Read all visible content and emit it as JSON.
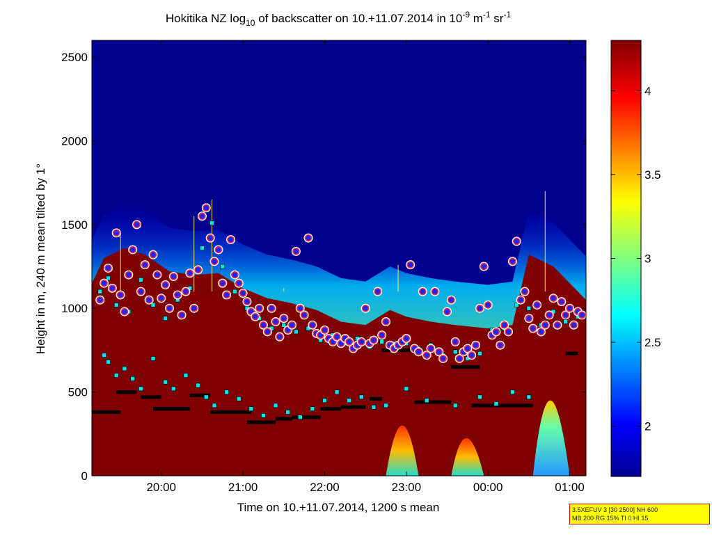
{
  "chart_data": {
    "type": "heatmap",
    "title": {
      "part1": "Hokitika NZ log",
      "sub1": "10",
      "part2": " of backscatter on 10.+11.07.2014 in 10",
      "sup1": "-9",
      "part3": " m",
      "sup2": "-1",
      "part4": " sr",
      "sup3": "-1"
    },
    "xlabel": "Time on 10.+11.07.2014, 1200 s mean",
    "ylabel": "Height in m, 240 m mean tilted by 1°",
    "x_ticks": [
      "20:00",
      "21:00",
      "22:00",
      "23:00",
      "00:00",
      "01:00"
    ],
    "y_ticks": [
      "0",
      "500",
      "1000",
      "1500",
      "2000",
      "2500"
    ],
    "ylim": [
      0,
      2600
    ],
    "colorbar": {
      "ticks": [
        "2",
        "2.5",
        "3",
        "3.5",
        "4"
      ],
      "range": [
        1.7,
        4.3
      ]
    },
    "colors": {
      "background_low": "#00008f",
      "high": "#7f0000",
      "cloud_marker_fill": "#2222ff",
      "cloud_marker_edge": "#ff2a2a",
      "cloud_marker_halo": "#ffffff",
      "layer_marker": "#00e5e5",
      "line_marker": "#000000"
    },
    "series": [
      {
        "points": [
          [
            19.25,
            1050
          ],
          [
            19.3,
            1150
          ],
          [
            19.35,
            1240
          ],
          [
            19.4,
            1120
          ],
          [
            19.45,
            1450
          ],
          [
            19.5,
            1080
          ],
          [
            19.55,
            980
          ],
          [
            19.6,
            1200
          ],
          [
            19.65,
            1350
          ],
          [
            19.7,
            1500
          ],
          [
            19.75,
            1100
          ],
          [
            19.8,
            1260
          ],
          [
            19.85,
            1050
          ],
          [
            19.9,
            1320
          ],
          [
            19.95,
            1200
          ],
          [
            20.0,
            1060
          ],
          [
            20.05,
            1140
          ],
          [
            20.1,
            1000
          ],
          [
            20.15,
            1190
          ],
          [
            20.2,
            1080
          ],
          [
            20.25,
            960
          ],
          [
            20.3,
            1100
          ],
          [
            20.35,
            1210
          ],
          [
            20.4,
            1000
          ],
          [
            20.45,
            1230
          ],
          [
            20.5,
            1550
          ],
          [
            20.55,
            1600
          ],
          [
            20.6,
            1420
          ],
          [
            20.65,
            1280
          ],
          [
            20.7,
            1350
          ],
          [
            20.75,
            1150
          ],
          [
            20.8,
            1080
          ],
          [
            20.85,
            1410
          ],
          [
            20.9,
            1200
          ],
          [
            20.95,
            1150
          ],
          [
            21.0,
            1090
          ],
          [
            21.05,
            1040
          ],
          [
            21.1,
            980
          ],
          [
            21.15,
            950
          ],
          [
            21.2,
            1000
          ],
          [
            21.25,
            900
          ],
          [
            21.3,
            860
          ],
          [
            21.35,
            1000
          ],
          [
            21.4,
            920
          ],
          [
            21.45,
            830
          ],
          [
            21.5,
            940
          ],
          [
            21.55,
            870
          ],
          [
            21.6,
            900
          ],
          [
            21.65,
            1340
          ],
          [
            21.7,
            1000
          ],
          [
            21.75,
            960
          ],
          [
            21.8,
            1420
          ],
          [
            21.85,
            900
          ],
          [
            21.9,
            850
          ],
          [
            21.95,
            840
          ],
          [
            22.0,
            870
          ],
          [
            22.05,
            820
          ],
          [
            22.1,
            800
          ],
          [
            22.15,
            830
          ],
          [
            22.2,
            790
          ],
          [
            22.25,
            820
          ],
          [
            22.3,
            800
          ],
          [
            22.35,
            760
          ],
          [
            22.4,
            780
          ],
          [
            22.45,
            800
          ],
          [
            22.5,
            1000
          ],
          [
            22.55,
            790
          ],
          [
            22.6,
            810
          ],
          [
            22.65,
            1100
          ],
          [
            22.7,
            840
          ],
          [
            22.75,
            920
          ],
          [
            22.8,
            780
          ],
          [
            22.85,
            760
          ],
          [
            22.9,
            780
          ],
          [
            22.95,
            800
          ],
          [
            23.0,
            820
          ],
          [
            23.05,
            1260
          ],
          [
            23.1,
            760
          ],
          [
            23.15,
            740
          ],
          [
            23.2,
            1100
          ],
          [
            23.25,
            720
          ],
          [
            23.3,
            760
          ],
          [
            23.35,
            1100
          ],
          [
            23.4,
            740
          ],
          [
            23.45,
            700
          ],
          [
            23.5,
            980
          ],
          [
            23.55,
            1050
          ],
          [
            23.6,
            800
          ],
          [
            23.65,
            700
          ],
          [
            23.7,
            740
          ],
          [
            23.75,
            760
          ],
          [
            23.8,
            720
          ],
          [
            23.85,
            780
          ],
          [
            23.9,
            1000
          ],
          [
            23.95,
            1250
          ],
          [
            24.0,
            1020
          ],
          [
            24.05,
            840
          ],
          [
            24.1,
            860
          ],
          [
            24.15,
            780
          ],
          [
            24.2,
            900
          ],
          [
            24.25,
            860
          ],
          [
            24.3,
            1280
          ],
          [
            24.35,
            1400
          ],
          [
            24.4,
            1050
          ],
          [
            24.45,
            1100
          ],
          [
            24.5,
            940
          ],
          [
            24.55,
            880
          ],
          [
            24.6,
            1020
          ],
          [
            24.65,
            860
          ],
          [
            24.7,
            900
          ],
          [
            24.75,
            960
          ],
          [
            24.8,
            1060
          ],
          [
            24.85,
            900
          ],
          [
            24.9,
            1040
          ],
          [
            24.95,
            960
          ],
          [
            25.0,
            1000
          ],
          [
            25.05,
            900
          ],
          [
            25.1,
            980
          ],
          [
            25.15,
            960
          ]
        ],
        "layers": [
          [
            19.25,
            1100
          ],
          [
            19.35,
            1180
          ],
          [
            19.45,
            1020
          ],
          [
            19.6,
            980
          ],
          [
            19.75,
            1170
          ],
          [
            19.9,
            1020
          ],
          [
            20.05,
            940
          ],
          [
            20.2,
            1050
          ],
          [
            20.35,
            1120
          ],
          [
            20.5,
            1360
          ],
          [
            20.62,
            1510
          ],
          [
            20.75,
            1250
          ],
          [
            20.9,
            1100
          ],
          [
            21.05,
            1000
          ],
          [
            21.2,
            940
          ],
          [
            21.35,
            880
          ],
          [
            21.5,
            900
          ],
          [
            21.65,
            860
          ],
          [
            21.8,
            880
          ],
          [
            21.95,
            810
          ],
          [
            22.1,
            840
          ],
          [
            22.25,
            790
          ],
          [
            22.4,
            820
          ],
          [
            22.55,
            770
          ],
          [
            22.7,
            800
          ],
          [
            22.85,
            790
          ],
          [
            23.0,
            790
          ],
          [
            23.15,
            760
          ],
          [
            23.3,
            780
          ],
          [
            23.45,
            720
          ],
          [
            23.6,
            740
          ],
          [
            23.75,
            700
          ],
          [
            23.9,
            730
          ],
          [
            24.05,
            870
          ],
          [
            24.2,
            880
          ],
          [
            24.35,
            1020
          ],
          [
            24.5,
            1000
          ],
          [
            24.65,
            900
          ],
          [
            24.8,
            980
          ],
          [
            24.95,
            920
          ],
          [
            25.1,
            950
          ]
        ],
        "lower": [
          [
            19.3,
            720
          ],
          [
            19.35,
            680
          ],
          [
            19.45,
            600
          ],
          [
            19.55,
            640
          ],
          [
            19.65,
            580
          ],
          [
            19.75,
            520
          ],
          [
            19.9,
            700
          ],
          [
            20.05,
            560
          ],
          [
            20.15,
            520
          ],
          [
            20.3,
            600
          ],
          [
            20.45,
            540
          ],
          [
            20.55,
            470
          ],
          [
            20.65,
            420
          ],
          [
            20.8,
            500
          ],
          [
            20.95,
            460
          ],
          [
            21.1,
            400
          ],
          [
            21.25,
            360
          ],
          [
            21.4,
            420
          ],
          [
            21.55,
            380
          ],
          [
            21.7,
            350
          ],
          [
            21.85,
            400
          ],
          [
            22.0,
            450
          ],
          [
            22.15,
            500
          ],
          [
            22.3,
            450
          ],
          [
            22.45,
            470
          ],
          [
            22.6,
            410
          ],
          [
            22.75,
            420
          ],
          [
            23.0,
            520
          ],
          [
            23.25,
            450
          ],
          [
            23.6,
            420
          ],
          [
            23.9,
            470
          ],
          [
            24.1,
            430
          ],
          [
            24.3,
            500
          ],
          [
            24.5,
            470
          ]
        ],
        "l1": [
          [
            19.1,
            380
          ],
          [
            19.5,
            380
          ],
          [
            19.45,
            500
          ],
          [
            19.7,
            500
          ],
          [
            19.75,
            470
          ],
          [
            20.0,
            470
          ],
          [
            19.9,
            400
          ],
          [
            20.35,
            400
          ],
          [
            20.35,
            480
          ],
          [
            20.6,
            480
          ],
          [
            20.6,
            380
          ],
          [
            21.1,
            380
          ],
          [
            21.05,
            320
          ],
          [
            21.4,
            320
          ],
          [
            21.4,
            340
          ],
          [
            21.6,
            340
          ],
          [
            21.6,
            350
          ],
          [
            21.95,
            350
          ],
          [
            21.95,
            400
          ],
          [
            22.2,
            400
          ],
          [
            22.2,
            410
          ],
          [
            22.5,
            410
          ],
          [
            22.55,
            460
          ],
          [
            22.7,
            460
          ],
          [
            22.7,
            750
          ],
          [
            23.05,
            750
          ],
          [
            23.1,
            440
          ],
          [
            23.55,
            440
          ],
          [
            23.55,
            650
          ],
          [
            23.9,
            650
          ],
          [
            23.8,
            420
          ],
          [
            24.55,
            420
          ],
          [
            24.95,
            730
          ],
          [
            25.1,
            730
          ]
        ],
        "cloud_main": [
          [
            19.1,
            1100
          ],
          [
            19.3,
            1300
          ],
          [
            19.55,
            1360
          ],
          [
            19.8,
            1320
          ],
          [
            20.1,
            1220
          ],
          [
            20.4,
            1200
          ],
          [
            20.7,
            1210
          ],
          [
            21.0,
            1120
          ],
          [
            21.3,
            1060
          ],
          [
            21.6,
            1030
          ],
          [
            21.9,
            990
          ],
          [
            22.2,
            920
          ],
          [
            22.5,
            900
          ],
          [
            22.8,
            990
          ],
          [
            23.0,
            950
          ],
          [
            23.3,
            920
          ],
          [
            23.6,
            900
          ],
          [
            24.0,
            880
          ],
          [
            24.3,
            900
          ],
          [
            24.5,
            1320
          ],
          [
            24.8,
            1250
          ],
          [
            25.1,
            1100
          ],
          [
            25.2,
            1050
          ]
        ],
        "cloud_tops_x": [
          19.5,
          20.4,
          20.62,
          21.5,
          22.9,
          24.7
        ],
        "cloud_tops_y": [
          1450,
          1550,
          1650,
          1120,
          1260,
          1700
        ]
      }
    ],
    "x_time_range": [
      19.15,
      25.2
    ],
    "x_tick_hours": [
      20,
      21,
      22,
      23,
      24,
      25
    ]
  },
  "info_box": {
    "line1": "3.5XEFUV 3 [30 2500] NH 600",
    "line2": "MB 200 RG 15% TI 0 HI 15"
  }
}
